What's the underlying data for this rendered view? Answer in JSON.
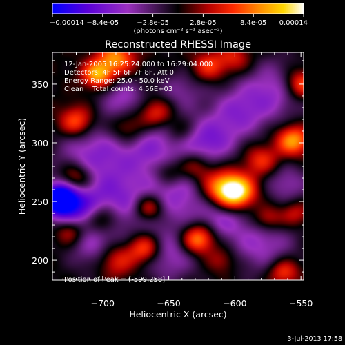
{
  "chart_data": {
    "type": "heatmap",
    "title": "Reconstructed RHESSI Image",
    "xlabel": "Heliocentric X (arcsec)",
    "ylabel": "Heliocentric Y (arcsec)",
    "xlim": [
      -738,
      -548
    ],
    "ylim": [
      183,
      377
    ],
    "xticks": [
      -700,
      -650,
      -600,
      -550
    ],
    "xtick_labels": [
      "−700",
      "−650",
      "−600",
      "−550"
    ],
    "yticks": [
      200,
      250,
      300,
      350
    ],
    "ytick_labels": [
      "200",
      "250",
      "300",
      "350"
    ],
    "colorbar": {
      "range": [
        -0.00014,
        0.00014
      ],
      "tick_labels": [
        "−0.00014",
        "−8.4e-05",
        "−2.8e-05",
        "2.8e-05",
        "8.4e-05",
        "0.00014"
      ],
      "unit_label": "(photons cm⁻² s⁻¹ asec⁻²)",
      "colors": [
        "#0000ff",
        "#5a00d8",
        "#9b30c0",
        "#000000",
        "#b40000",
        "#ff2a00",
        "#ff8800",
        "#ffd700",
        "#ffffff"
      ]
    },
    "annotations": [
      "12-Jan-2005 16:25:24.000 to 16:29:04.000",
      "Detectors: 4F 5F 6F 7F 8F, Att 0",
      "Energy Range: 25.0 - 50.0 keV",
      "Clean    Total counts: 4.56E+03"
    ],
    "peak_label": "Position of Peak = [-599,258]",
    "peak": [
      -599,
      258
    ],
    "sources": [
      {
        "x": -733,
        "y": 253,
        "v": -0.00014,
        "r": 9
      },
      {
        "x": -725,
        "y": 245,
        "v": -9e-05,
        "r": 14
      },
      {
        "x": -710,
        "y": 290,
        "v": -6e-05,
        "r": 18
      },
      {
        "x": -690,
        "y": 250,
        "v": -7e-05,
        "r": 20
      },
      {
        "x": -665,
        "y": 300,
        "v": -7e-05,
        "r": 20
      },
      {
        "x": -640,
        "y": 255,
        "v": -6e-05,
        "r": 18
      },
      {
        "x": -620,
        "y": 300,
        "v": -7e-05,
        "r": 14
      },
      {
        "x": -598,
        "y": 325,
        "v": -6e-05,
        "r": 16
      },
      {
        "x": -570,
        "y": 345,
        "v": -6e-05,
        "r": 18
      },
      {
        "x": -580,
        "y": 215,
        "v": -6e-05,
        "r": 18
      },
      {
        "x": -650,
        "y": 205,
        "v": -6e-05,
        "r": 16
      },
      {
        "x": -705,
        "y": 210,
        "v": -5e-05,
        "r": 14
      },
      {
        "x": -610,
        "y": 235,
        "v": -5e-05,
        "r": 12
      },
      {
        "x": -560,
        "y": 265,
        "v": -5e-05,
        "r": 12
      },
      {
        "x": -685,
        "y": 338,
        "v": -5e-05,
        "r": 12
      },
      {
        "x": -640,
        "y": 345,
        "v": -4e-05,
        "r": 12
      },
      {
        "x": -599,
        "y": 258,
        "v": 0.00014,
        "r": 10
      },
      {
        "x": -612,
        "y": 262,
        "v": 8e-05,
        "r": 11
      },
      {
        "x": -628,
        "y": 218,
        "v": 0.00011,
        "r": 9
      },
      {
        "x": -556,
        "y": 302,
        "v": 0.0001,
        "r": 9
      },
      {
        "x": -550,
        "y": 350,
        "v": 9e-05,
        "r": 9
      },
      {
        "x": -704,
        "y": 358,
        "v": 0.0001,
        "r": 8
      },
      {
        "x": -690,
        "y": 372,
        "v": 9e-05,
        "r": 10
      },
      {
        "x": -660,
        "y": 325,
        "v": 8e-05,
        "r": 9
      },
      {
        "x": -680,
        "y": 312,
        "v": 7e-05,
        "r": 10
      },
      {
        "x": -720,
        "y": 318,
        "v": 8e-05,
        "r": 9
      },
      {
        "x": -720,
        "y": 270,
        "v": 8e-05,
        "r": 9
      },
      {
        "x": -700,
        "y": 235,
        "v": 7e-05,
        "r": 9
      },
      {
        "x": -665,
        "y": 245,
        "v": 8e-05,
        "r": 8
      },
      {
        "x": -668,
        "y": 210,
        "v": 9e-05,
        "r": 9
      },
      {
        "x": -690,
        "y": 200,
        "v": 7e-05,
        "r": 10
      },
      {
        "x": -650,
        "y": 275,
        "v": 5e-05,
        "r": 8
      },
      {
        "x": -630,
        "y": 280,
        "v": 6e-05,
        "r": 9
      },
      {
        "x": -580,
        "y": 285,
        "v": 6e-05,
        "r": 9
      },
      {
        "x": -575,
        "y": 235,
        "v": 6e-05,
        "r": 8
      },
      {
        "x": -610,
        "y": 200,
        "v": 4e-05,
        "r": 8
      },
      {
        "x": -563,
        "y": 190,
        "v": 7e-05,
        "r": 8
      },
      {
        "x": -620,
        "y": 365,
        "v": 6e-05,
        "r": 9
      },
      {
        "x": -600,
        "y": 372,
        "v": 5e-05,
        "r": 9
      },
      {
        "x": -725,
        "y": 225,
        "v": 7e-05,
        "r": 8
      },
      {
        "x": -642,
        "y": 310,
        "v": 4e-05,
        "r": 8
      },
      {
        "x": -555,
        "y": 240,
        "v": 5e-05,
        "r": 8
      }
    ]
  },
  "footer": {
    "date": "3-Jul-2013 17:58"
  }
}
